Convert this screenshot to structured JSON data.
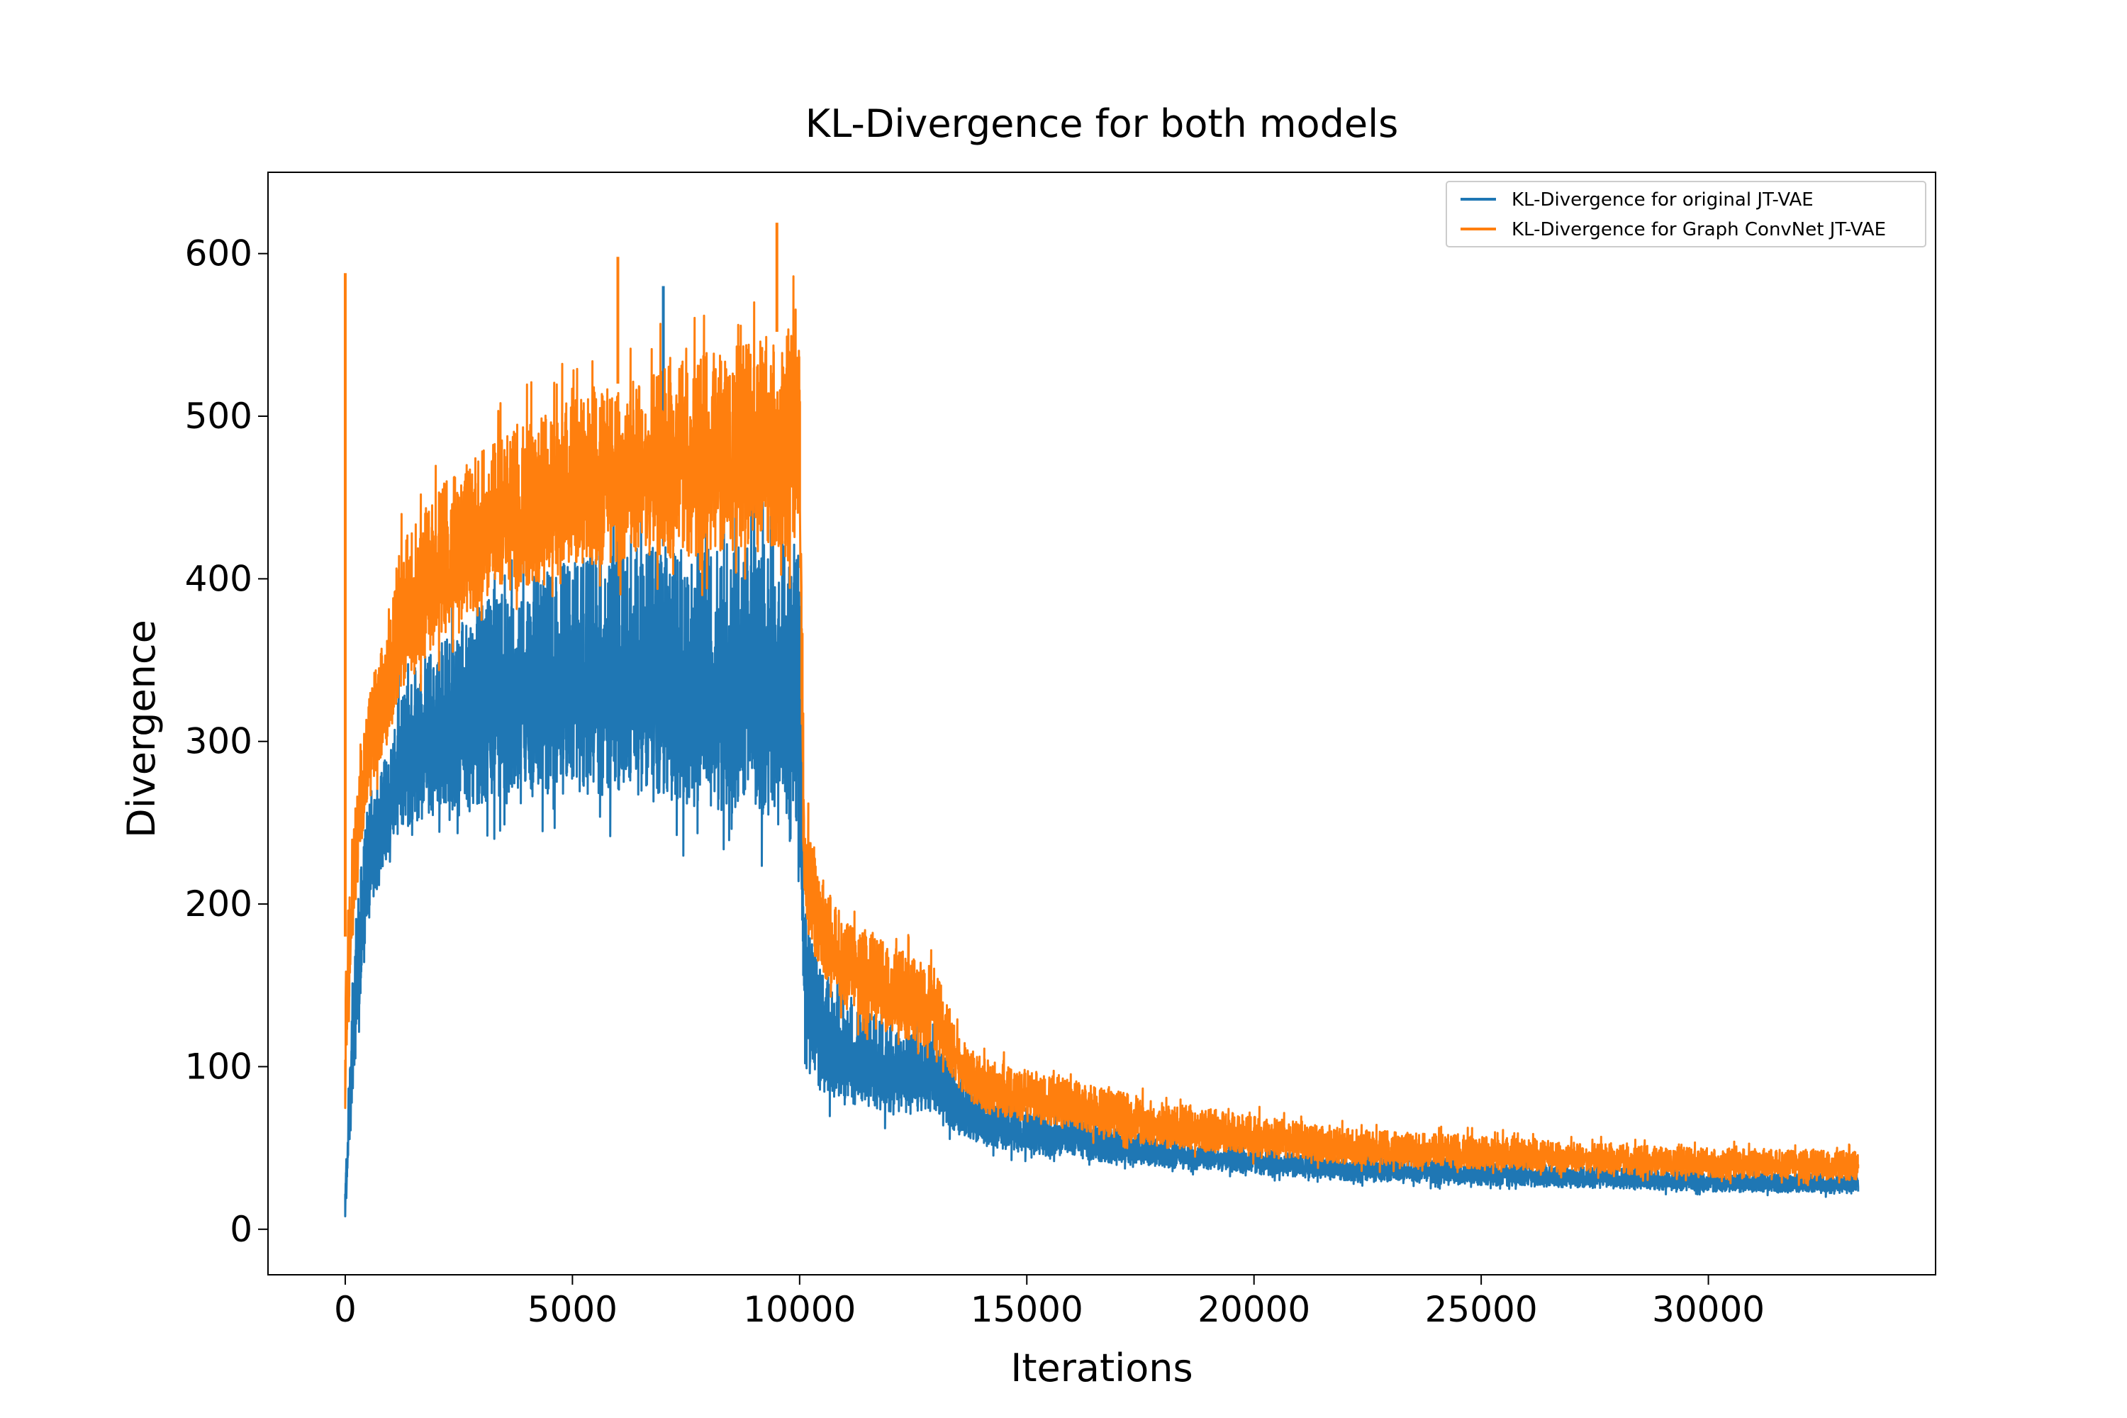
{
  "chart_data": {
    "type": "line",
    "title": "KL-Divergence for both models",
    "xlabel": "Iterations",
    "ylabel": "Divergence",
    "xlim": [
      -1700,
      35000
    ],
    "ylim": [
      -28,
      650
    ],
    "xticks": [
      0,
      5000,
      10000,
      15000,
      20000,
      25000,
      30000
    ],
    "xtick_labels": [
      "0",
      "5000",
      "10000",
      "15000",
      "20000",
      "25000",
      "30000"
    ],
    "yticks": [
      0,
      100,
      200,
      300,
      400,
      500,
      600
    ],
    "ytick_labels": [
      "0",
      "100",
      "200",
      "300",
      "400",
      "500",
      "600"
    ],
    "grid": false,
    "legend_position": "upper right",
    "x_end": 33300,
    "series": [
      {
        "name": "KL-Divergence for original JT-VAE",
        "color": "#1f77b4",
        "envelope_x": [
          0,
          150,
          300,
          500,
          800,
          1000,
          1200,
          2000,
          3000,
          4000,
          5000,
          6000,
          7000,
          8000,
          9000,
          9900,
          10000,
          10100,
          10500,
          11000,
          12000,
          13000,
          13400,
          14000,
          15000,
          16000,
          17000,
          18000,
          20000,
          22000,
          25000,
          28000,
          30000,
          33300
        ],
        "envelope_low": [
          2,
          80,
          130,
          185,
          220,
          235,
          245,
          255,
          262,
          266,
          268,
          266,
          262,
          258,
          254,
          248,
          245,
          100,
          85,
          78,
          72,
          70,
          60,
          52,
          46,
          44,
          40,
          38,
          34,
          30,
          27,
          25,
          23,
          22
        ],
        "envelope_high": [
          30,
          150,
          210,
          265,
          285,
          300,
          330,
          360,
          385,
          400,
          412,
          418,
          420,
          422,
          425,
          430,
          430,
          200,
          160,
          140,
          128,
          118,
          100,
          82,
          75,
          70,
          62,
          55,
          50,
          45,
          42,
          38,
          36,
          34
        ],
        "spikes": [
          {
            "x": 7000,
            "y": 580
          }
        ]
      },
      {
        "name": "KL-Divergence for Graph ConvNet JT-VAE",
        "color": "#ff7f0e",
        "envelope_x": [
          0,
          150,
          300,
          500,
          800,
          1000,
          1200,
          2000,
          3000,
          4000,
          5000,
          6000,
          7000,
          8000,
          9000,
          9900,
          10000,
          10100,
          10500,
          11000,
          12000,
          13000,
          13400,
          14000,
          15000,
          16000,
          17000,
          18000,
          20000,
          22000,
          25000,
          28000,
          30000,
          33300
        ],
        "envelope_low": [
          70,
          170,
          220,
          265,
          290,
          305,
          330,
          360,
          385,
          395,
          405,
          410,
          412,
          415,
          418,
          420,
          420,
          190,
          150,
          135,
          120,
          110,
          90,
          72,
          66,
          62,
          55,
          50,
          45,
          40,
          37,
          34,
          32,
          30
        ],
        "envelope_high": [
          180,
          240,
          280,
          330,
          360,
          385,
          420,
          455,
          480,
          495,
          510,
          520,
          530,
          540,
          548,
          555,
          560,
          260,
          215,
          190,
          175,
          160,
          125,
          105,
          98,
          92,
          85,
          78,
          70,
          62,
          57,
          52,
          50,
          48
        ],
        "spikes": [
          {
            "x": 0,
            "y": 588
          },
          {
            "x": 6000,
            "y": 598
          },
          {
            "x": 9500,
            "y": 619
          }
        ]
      }
    ]
  }
}
